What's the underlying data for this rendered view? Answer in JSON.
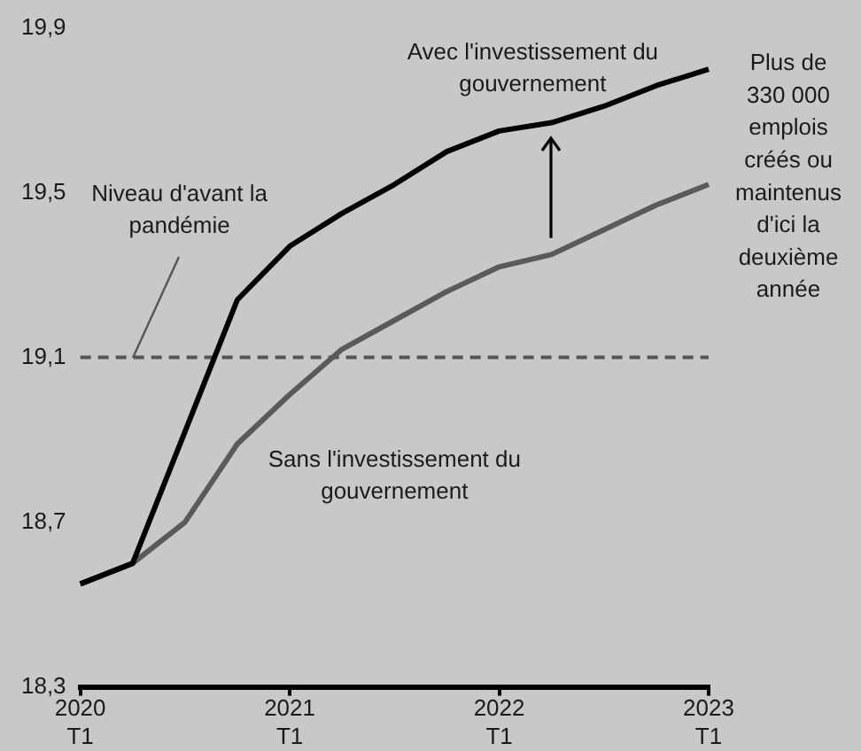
{
  "chart_data": {
    "type": "line",
    "categories": [
      "2020 T1",
      null,
      null,
      null,
      "2021 T1",
      null,
      null,
      null,
      "2022 T1",
      null,
      null,
      null,
      "2023 T1"
    ],
    "series": [
      {
        "name": "Avec l'investissement du gouvernement",
        "color": "#000000",
        "values": [
          18.55,
          18.6,
          18.92,
          19.24,
          19.37,
          19.45,
          19.52,
          19.6,
          19.65,
          19.67,
          19.71,
          19.76,
          19.8
        ]
      },
      {
        "name": "Sans l'investissement du gouvernement",
        "color": "#5a5a5a",
        "values": [
          18.55,
          18.6,
          18.7,
          18.89,
          19.01,
          19.12,
          19.19,
          19.26,
          19.32,
          19.35,
          19.41,
          19.47,
          19.52
        ]
      }
    ],
    "ylim": [
      18.3,
      19.9
    ],
    "yticks": [
      {
        "value": 18.3,
        "label": "18,3"
      },
      {
        "value": 18.7,
        "label": "18,7"
      },
      {
        "value": 19.1,
        "label": "19,1"
      },
      {
        "value": 19.5,
        "label": "19,5"
      },
      {
        "value": 19.9,
        "label": "19,9"
      }
    ],
    "ref_lines": [
      {
        "axis": "y",
        "value": 19.1,
        "label": "Niveau d'avant la pandémie",
        "color": "#555555",
        "line_style": "dashed"
      }
    ],
    "annotations": [
      "Plus de 330 000 emplois créés ou maintenus d'ici la deuxième année"
    ],
    "grid": false,
    "marker": "none"
  }
}
